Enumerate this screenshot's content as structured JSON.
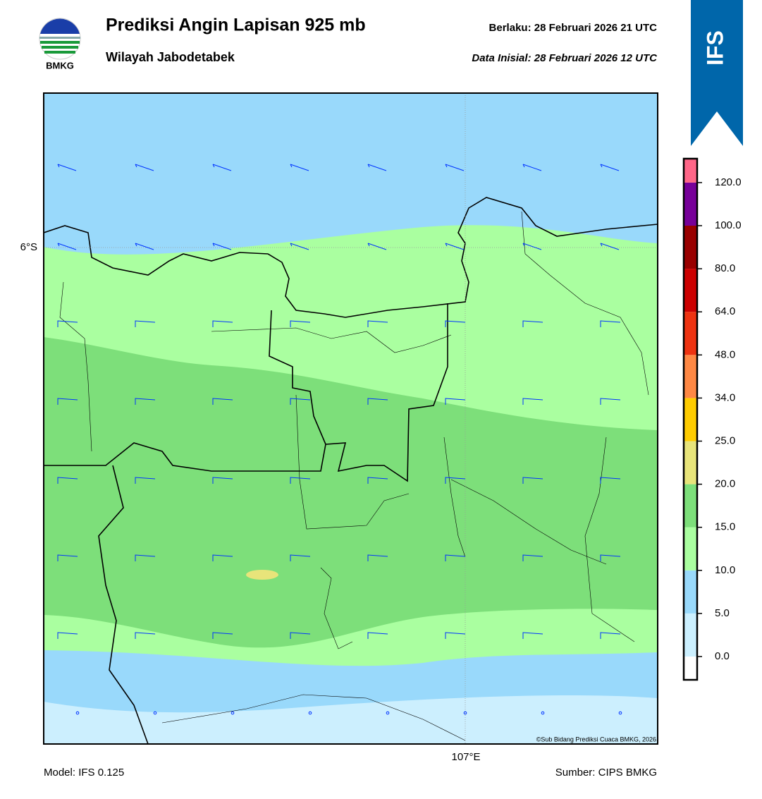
{
  "header": {
    "title": "Prediksi Angin Lapisan 925 mb",
    "subtitle": "Wilayah Jabodetabek",
    "valid": "Berlaku:  28 Februari 2026 21 UTC",
    "init": "Data Inisial:  28 Februari 2026 12 UTC",
    "logo": "BMKG",
    "badge": "IFS"
  },
  "map": {
    "lat_label": "6°S",
    "lon_label": "107°E",
    "copyright": "©Sub Bidang Prediksi Cuaca BMKG, 2026"
  },
  "colorbar": {
    "ticks": [
      {
        "value": 0,
        "label": "0.0"
      },
      {
        "value": 5,
        "label": "5.0"
      },
      {
        "value": 10,
        "label": "10.0"
      },
      {
        "value": 15,
        "label": "15.0"
      },
      {
        "value": 20,
        "label": "20.0"
      },
      {
        "value": 25,
        "label": "25.0"
      },
      {
        "value": 34,
        "label": "34.0"
      },
      {
        "value": 48,
        "label": "48.0"
      },
      {
        "value": 64,
        "label": "64.0"
      },
      {
        "value": 80,
        "label": "80.0"
      },
      {
        "value": 100,
        "label": "100.0"
      },
      {
        "value": 120,
        "label": "120.0"
      }
    ],
    "colors": [
      "#ffffff",
      "#ccf0ff",
      "#99d9fb",
      "#aaffa0",
      "#7ddf7a",
      "#e8e47a",
      "#ffcc00",
      "#ff8844",
      "#ee3311",
      "#cc0000",
      "#990000",
      "#770099",
      "#ff6688"
    ]
  },
  "footer": {
    "model": "Model: IFS 0.125",
    "source": "Sumber: CIPS BMKG"
  }
}
